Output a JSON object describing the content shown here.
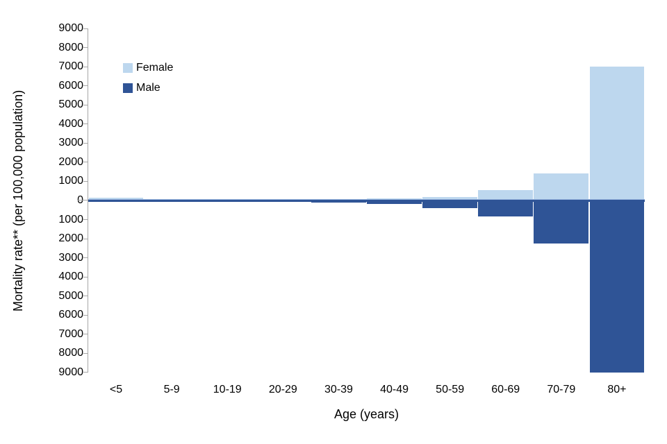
{
  "chart_data": {
    "type": "bar",
    "subtype": "mirrored-vertical-pyramid",
    "title": "",
    "xlabel": "Age (years)",
    "ylabel": "Mortality rate** (per 100,000 population)",
    "categories": [
      "<5",
      "5-9",
      "10-19",
      "20-29",
      "30-39",
      "40-49",
      "50-59",
      "60-69",
      "70-79",
      "80+"
    ],
    "series": [
      {
        "name": "Female",
        "color": "#BDD7EE",
        "direction": "up",
        "values": [
          150,
          10,
          40,
          60,
          70,
          120,
          190,
          550,
          1400,
          7000
        ]
      },
      {
        "name": "Male",
        "color": "#2F5496",
        "direction": "down",
        "values": [
          60,
          20,
          40,
          70,
          100,
          170,
          390,
          850,
          2270,
          9000
        ]
      }
    ],
    "y_axis": {
      "max_each_direction": 9000,
      "tick_step": 1000,
      "tick_labels": [
        "9000",
        "8000",
        "7000",
        "6000",
        "5000",
        "4000",
        "3000",
        "2000",
        "1000",
        "0",
        "1000",
        "2000",
        "3000",
        "4000",
        "5000",
        "6000",
        "7000",
        "8000",
        "9000"
      ]
    },
    "legend": {
      "position": "inside-top-left",
      "entries": [
        "Female",
        "Male"
      ]
    },
    "grid": false,
    "axis_color": "#A6A6A6",
    "zero_line_color": "#2F5496",
    "zero_line_highlight": "#95B3DD",
    "text_color": "#000000"
  }
}
